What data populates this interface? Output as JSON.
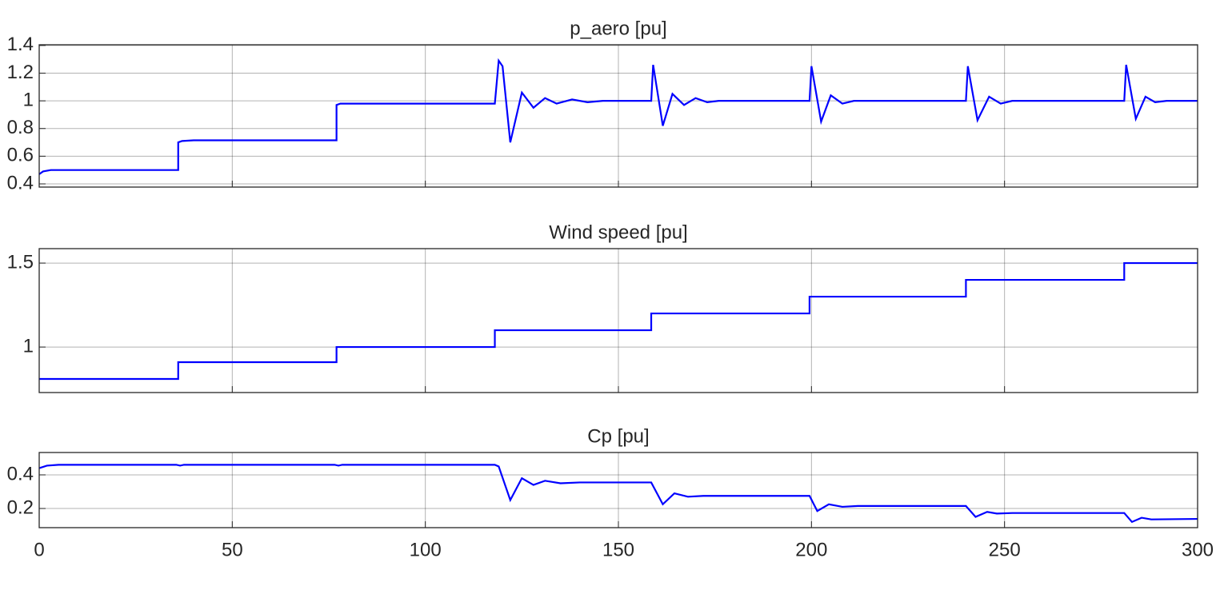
{
  "chart_data": [
    {
      "type": "line",
      "title": "p_aero [pu]",
      "color": "#0000ff",
      "grid": true,
      "xtick_labels": false,
      "xlim": [
        0,
        300
      ],
      "xticks": [
        0,
        50,
        100,
        150,
        200,
        250,
        300
      ],
      "ylim": [
        0.377,
        1.405
      ],
      "yticks": [
        0.4,
        0.6,
        0.8,
        1,
        1.2,
        1.4
      ],
      "x": [
        0,
        1,
        3,
        36,
        36,
        37,
        40,
        77,
        77,
        78,
        80,
        118,
        119,
        120,
        122,
        125,
        128,
        131,
        134,
        138,
        142,
        146,
        158.5,
        159,
        161.5,
        164,
        167,
        170,
        173,
        176,
        199.5,
        200,
        202.5,
        205,
        208,
        211,
        240,
        240.5,
        243,
        246,
        249,
        252,
        281,
        281.5,
        284,
        286.5,
        289,
        292,
        300
      ],
      "values": [
        0.47,
        0.49,
        0.5,
        0.5,
        0.7,
        0.71,
        0.715,
        0.715,
        0.97,
        0.98,
        0.98,
        0.98,
        1.29,
        1.25,
        0.7,
        1.06,
        0.95,
        1.02,
        0.98,
        1.01,
        0.99,
        1.0,
        1.0,
        1.26,
        0.82,
        1.05,
        0.97,
        1.02,
        0.99,
        1.0,
        1.0,
        1.25,
        0.85,
        1.04,
        0.98,
        1.0,
        1.0,
        1.25,
        0.86,
        1.03,
        0.98,
        1.0,
        1.0,
        1.26,
        0.87,
        1.03,
        0.99,
        1.0,
        1.0
      ]
    },
    {
      "type": "line",
      "title": "Wind speed [pu]",
      "color": "#0000ff",
      "grid": true,
      "xtick_labels": false,
      "xlim": [
        0,
        300
      ],
      "xticks": [
        0,
        50,
        100,
        150,
        200,
        250,
        300
      ],
      "ylim": [
        0.729,
        1.586
      ],
      "yticks": [
        1,
        1.5
      ],
      "x": [
        0,
        36,
        36,
        77,
        77,
        118,
        118,
        158.5,
        158.5,
        199.5,
        199.5,
        240,
        240,
        281,
        281,
        300
      ],
      "values": [
        0.81,
        0.81,
        0.91,
        0.91,
        1.0,
        1.0,
        1.1,
        1.1,
        1.2,
        1.2,
        1.3,
        1.3,
        1.4,
        1.4,
        1.5,
        1.5
      ]
    },
    {
      "type": "line",
      "title": "Cp [pu]",
      "color": "#0000ff",
      "grid": true,
      "xtick_labels": true,
      "xlim": [
        0,
        300
      ],
      "xticks": [
        0,
        50,
        100,
        150,
        200,
        250,
        300
      ],
      "ylim": [
        0.086,
        0.533
      ],
      "yticks": [
        0.2,
        0.4
      ],
      "x": [
        0,
        2,
        5,
        35.5,
        36.5,
        37.5,
        76.5,
        77.5,
        78.5,
        118,
        119,
        122,
        125,
        128,
        131,
        135,
        140,
        158.5,
        161.5,
        164.5,
        168,
        172,
        199.5,
        201.5,
        204.5,
        208,
        212,
        240,
        242.5,
        245.5,
        248,
        252,
        281,
        283,
        285.5,
        288,
        300
      ],
      "values": [
        0.44,
        0.455,
        0.46,
        0.46,
        0.455,
        0.46,
        0.46,
        0.455,
        0.46,
        0.46,
        0.45,
        0.25,
        0.38,
        0.34,
        0.365,
        0.35,
        0.355,
        0.355,
        0.225,
        0.29,
        0.27,
        0.275,
        0.275,
        0.185,
        0.225,
        0.21,
        0.215,
        0.215,
        0.15,
        0.18,
        0.17,
        0.173,
        0.173,
        0.12,
        0.145,
        0.135,
        0.138
      ]
    }
  ]
}
